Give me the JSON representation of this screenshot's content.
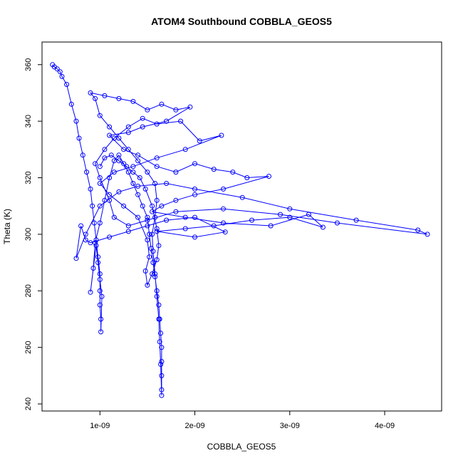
{
  "chart_data": {
    "type": "scatter",
    "title": "ATOM4 Southbound COBBLA_GEOS5",
    "xlabel": "COBBLA_GEOS5",
    "ylabel": "Theta (K)",
    "xlim": [
      3.9e-10,
      4.6e-09
    ],
    "ylim": [
      237.5,
      368
    ],
    "x_ticks": [
      1e-09,
      2e-09,
      3e-09,
      4e-09
    ],
    "x_tick_labels": [
      "1e-09",
      "2e-09",
      "3e-09",
      "4e-09"
    ],
    "y_ticks": [
      240,
      260,
      280,
      300,
      320,
      340,
      360
    ],
    "y_tick_labels": [
      "240",
      "260",
      "280",
      "300",
      "320",
      "340",
      "360"
    ],
    "grid": false,
    "legend": "none",
    "marker": "open-circle",
    "connected": true,
    "color": "#0000ff",
    "series": [
      {
        "points": [
          [
            5e-10,
            360.0
          ],
          [
            5.2e-10,
            359.2
          ],
          [
            5.5e-10,
            358.5
          ],
          [
            5.8e-10,
            357.5
          ],
          [
            6e-10,
            355.8
          ],
          [
            6.5e-10,
            353.0
          ],
          [
            7e-10,
            346.0
          ],
          [
            7.5e-10,
            340.0
          ],
          [
            7.8e-10,
            334.0
          ],
          [
            8.2e-10,
            328.0
          ],
          [
            8.6e-10,
            322.0
          ],
          [
            9e-10,
            316.0
          ],
          [
            9.2e-10,
            310.0
          ],
          [
            9.4e-10,
            304.0
          ],
          [
            9.6e-10,
            298.0
          ],
          [
            9.8e-10,
            292.0
          ],
          [
            1e-09,
            286.0
          ],
          [
            1e-09,
            280.0
          ],
          [
            1e-09,
            275.0
          ],
          [
            1.01e-09,
            270.0
          ],
          [
            1.01e-09,
            265.5
          ],
          [
            1.02e-09,
            278.0
          ],
          [
            1e-09,
            284.0
          ],
          [
            9.8e-10,
            290.0
          ],
          [
            9.6e-10,
            296.0
          ],
          [
            9e-10,
            279.5
          ],
          [
            9.3e-10,
            288.0
          ],
          [
            9.5e-10,
            297.0
          ],
          [
            1e-09,
            304.0
          ],
          [
            1.05e-09,
            312.0
          ],
          [
            1.1e-09,
            320.0
          ],
          [
            1.15e-09,
            326.0
          ],
          [
            1.2e-09,
            328.0
          ],
          [
            1.25e-09,
            325.0
          ],
          [
            1.3e-09,
            322.0
          ],
          [
            1.35e-09,
            318.0
          ],
          [
            1.4e-09,
            314.0
          ],
          [
            1.45e-09,
            310.0
          ],
          [
            1.5e-09,
            306.0
          ],
          [
            1.52e-09,
            300.0
          ],
          [
            1.54e-09,
            295.0
          ],
          [
            1.56e-09,
            290.0
          ],
          [
            1.58e-09,
            285.0
          ],
          [
            1.6e-09,
            280.0
          ],
          [
            1.62e-09,
            275.0
          ],
          [
            1.63e-09,
            270.0
          ],
          [
            1.64e-09,
            265.0
          ],
          [
            1.65e-09,
            260.0
          ],
          [
            1.65e-09,
            255.0
          ],
          [
            1.65e-09,
            250.0
          ],
          [
            1.65e-09,
            245.0
          ],
          [
            1.65e-09,
            243.0
          ],
          [
            1.64e-09,
            254.0
          ],
          [
            1.63e-09,
            262.0
          ],
          [
            1.62e-09,
            270.0
          ],
          [
            1.6e-09,
            278.0
          ],
          [
            1.58e-09,
            286.0
          ],
          [
            1.56e-09,
            294.0
          ],
          [
            1.55e-09,
            300.0
          ],
          [
            1.58e-09,
            306.0
          ],
          [
            1.6e-09,
            312.0
          ],
          [
            1.58e-09,
            318.0
          ],
          [
            1.5e-09,
            322.0
          ],
          [
            1.4e-09,
            326.0
          ],
          [
            1.3e-09,
            330.0
          ],
          [
            1.2e-09,
            334.0
          ],
          [
            1.1e-09,
            338.0
          ],
          [
            1e-09,
            342.0
          ],
          [
            9.5e-10,
            348.0
          ],
          [
            9e-10,
            350.0
          ],
          [
            1.05e-09,
            349.0
          ],
          [
            1.2e-09,
            348.0
          ],
          [
            1.35e-09,
            347.0
          ],
          [
            1.5e-09,
            344.0
          ],
          [
            1.65e-09,
            346.0
          ],
          [
            1.8e-09,
            344.0
          ],
          [
            1.95e-09,
            345.0
          ],
          [
            1.7e-09,
            340.0
          ],
          [
            1.45e-09,
            338.0
          ],
          [
            1.3e-09,
            336.0
          ],
          [
            1.1e-09,
            335.0
          ],
          [
            1.25e-09,
            330.0
          ],
          [
            1.4e-09,
            328.0
          ],
          [
            1.6e-09,
            324.0
          ],
          [
            1.8e-09,
            322.0
          ],
          [
            2e-09,
            325.0
          ],
          [
            2.2e-09,
            323.0
          ],
          [
            2.4e-09,
            322.0
          ],
          [
            2.55e-09,
            320.0
          ],
          [
            2.78e-09,
            320.5
          ],
          [
            2.3e-09,
            316.0
          ],
          [
            2e-09,
            314.0
          ],
          [
            1.8e-09,
            312.0
          ],
          [
            1.65e-09,
            310.0
          ],
          [
            1.55e-09,
            308.0
          ],
          [
            1.9e-09,
            306.0
          ],
          [
            2.3e-09,
            304.0
          ],
          [
            2.8e-09,
            303.0
          ],
          [
            3.2e-09,
            307.0
          ],
          [
            3.35e-09,
            302.5
          ],
          [
            3e-09,
            306.0
          ],
          [
            2.6e-09,
            305.0
          ],
          [
            2.2e-09,
            303.0
          ],
          [
            1.9e-09,
            302.0
          ],
          [
            1.6e-09,
            301.0
          ],
          [
            2e-09,
            299.0
          ],
          [
            2.32e-09,
            300.8
          ],
          [
            2e-09,
            306.0
          ],
          [
            1.7e-09,
            305.0
          ],
          [
            1.5e-09,
            303.0
          ],
          [
            1.3e-09,
            301.0
          ],
          [
            1.1e-09,
            299.0
          ],
          [
            9e-10,
            297.0
          ],
          [
            8.5e-10,
            298.0
          ],
          [
            8e-10,
            303.0
          ],
          [
            7.5e-10,
            291.5
          ],
          [
            8.5e-10,
            300.0
          ],
          [
            1e-09,
            310.0
          ],
          [
            1.2e-09,
            315.0
          ],
          [
            1.4e-09,
            317.0
          ],
          [
            1.7e-09,
            318.0
          ],
          [
            2e-09,
            316.0
          ],
          [
            2.5e-09,
            313.0
          ],
          [
            3e-09,
            309.0
          ],
          [
            3.7e-09,
            305.0
          ],
          [
            4.35e-09,
            301.5
          ],
          [
            4.45e-09,
            300.0
          ],
          [
            3.5e-09,
            304.0
          ],
          [
            2.9e-09,
            307.0
          ],
          [
            2.3e-09,
            309.0
          ],
          [
            1.8e-09,
            308.0
          ],
          [
            1.5e-09,
            305.0
          ],
          [
            1.3e-09,
            303.0
          ],
          [
            1.15e-09,
            306.0
          ],
          [
            1.1e-09,
            312.0
          ],
          [
            1e-09,
            320.0
          ],
          [
            9.5e-10,
            325.0
          ],
          [
            1.05e-09,
            330.0
          ],
          [
            1.15e-09,
            334.0
          ],
          [
            1.3e-09,
            338.0
          ],
          [
            1.45e-09,
            341.0
          ],
          [
            1.6e-09,
            339.0
          ],
          [
            1.85e-09,
            340.0
          ],
          [
            2.05e-09,
            333.0
          ],
          [
            2.28e-09,
            335.0
          ],
          [
            1.9e-09,
            330.0
          ],
          [
            1.6e-09,
            327.0
          ],
          [
            1.35e-09,
            324.0
          ],
          [
            1.15e-09,
            322.0
          ],
          [
            1e-09,
            318.0
          ],
          [
            1.1e-09,
            314.0
          ],
          [
            1.25e-09,
            310.0
          ],
          [
            1.4e-09,
            306.0
          ],
          [
            1.5e-09,
            298.0
          ],
          [
            1.52e-09,
            292.0
          ],
          [
            1.48e-09,
            287.0
          ],
          [
            1.5e-09,
            282.0
          ],
          [
            1.55e-09,
            286.0
          ],
          [
            1.6e-09,
            291.0
          ],
          [
            1.62e-09,
            296.0
          ],
          [
            1.6e-09,
            302.0
          ],
          [
            1.55e-09,
            310.0
          ],
          [
            1.48e-09,
            316.0
          ],
          [
            1.42e-09,
            320.0
          ],
          [
            1.35e-09,
            322.0
          ],
          [
            1.28e-09,
            324.0
          ],
          [
            1.2e-09,
            326.0
          ],
          [
            1.12e-09,
            328.0
          ],
          [
            1.05e-09,
            327.0
          ],
          [
            1e-09,
            324.0
          ]
        ]
      }
    ]
  }
}
